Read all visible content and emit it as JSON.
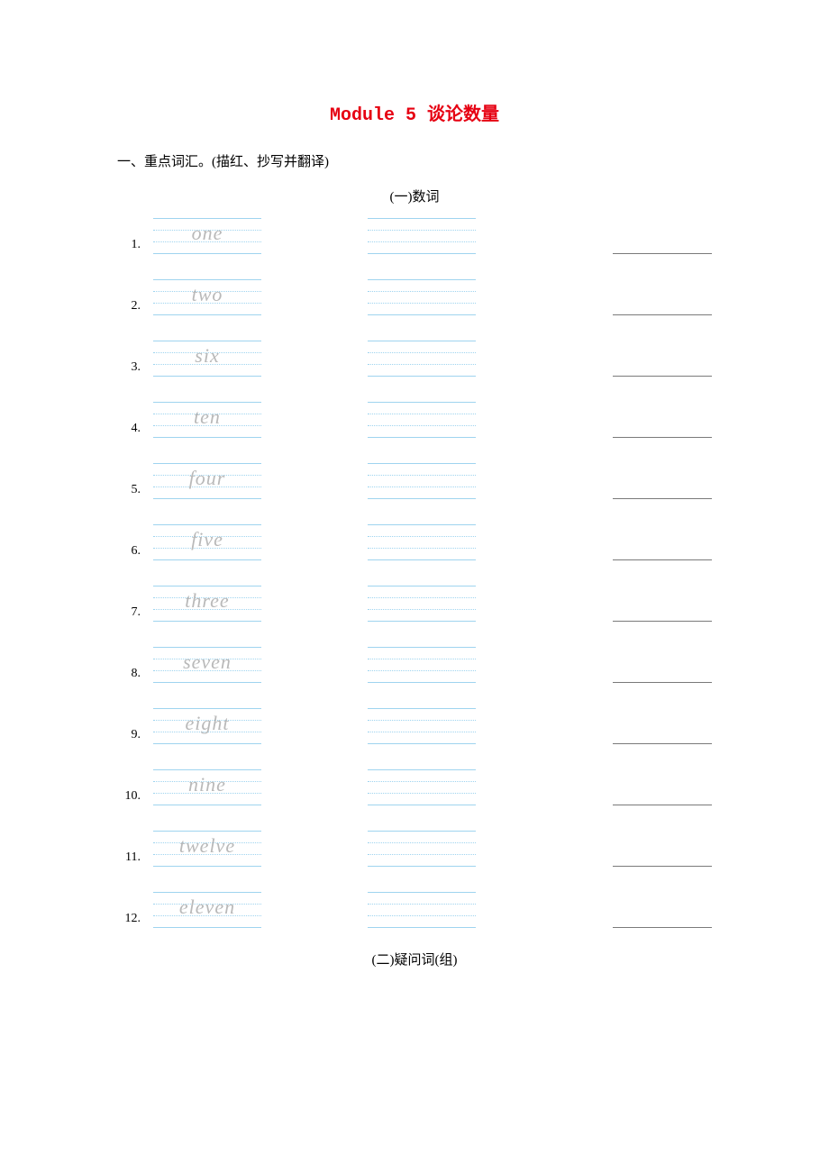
{
  "title": "Module 5 谈论数量",
  "section_heading": "一、重点词汇。(描红、抄写并翻译)",
  "sub_heading_1": "(一)数词",
  "sub_heading_2": "(二)疑问词(组)",
  "line_color": "#9fd4ef",
  "trace_text_color": "#b9b9b9",
  "answer_line_color": "#7a7a7a",
  "items": [
    {
      "n": "1.",
      "word": "one"
    },
    {
      "n": "2.",
      "word": "two"
    },
    {
      "n": "3.",
      "word": "six"
    },
    {
      "n": "4.",
      "word": "ten"
    },
    {
      "n": "5.",
      "word": "four"
    },
    {
      "n": "6.",
      "word": "five"
    },
    {
      "n": "7.",
      "word": "three"
    },
    {
      "n": "8.",
      "word": "seven"
    },
    {
      "n": "9.",
      "word": "eight"
    },
    {
      "n": "10.",
      "word": "nine"
    },
    {
      "n": "11.",
      "word": "twelve"
    },
    {
      "n": "12.",
      "word": "eleven"
    }
  ]
}
